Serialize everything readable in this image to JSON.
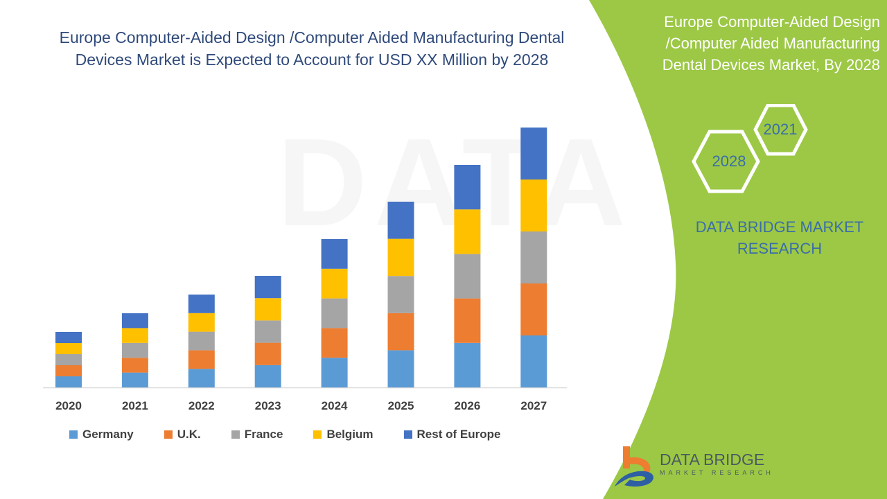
{
  "header": {
    "title": "Europe Computer-Aided Design /Computer Aided Manufacturing Dental Devices Market is Expected to Account for USD XX Million by 2028"
  },
  "side_panel": {
    "title": "Europe Computer-Aided Design /Computer Aided Manufacturing Dental Devices Market, By 2028",
    "hex_years": [
      "2021",
      "2028"
    ],
    "brand": "DATA BRIDGE MARKET RESEARCH",
    "logo_text": "DATA BRIDGE",
    "logo_sub": "MARKET RESEARCH",
    "accent": "#9cc846"
  },
  "chart_data": {
    "type": "bar",
    "stacked": true,
    "title": "",
    "xlabel": "",
    "ylabel": "",
    "categories": [
      "2020",
      "2021",
      "2022",
      "2023",
      "2024",
      "2025",
      "2026",
      "2027"
    ],
    "series": [
      {
        "name": "Germany",
        "color": "#5b9bd5",
        "values": [
          16,
          21.4,
          26.8,
          32.2,
          42.8,
          53.6,
          64.2,
          75
        ]
      },
      {
        "name": "U.K.",
        "color": "#ed7d31",
        "values": [
          16,
          21.4,
          26.8,
          32.2,
          42.8,
          53.6,
          64.2,
          75
        ]
      },
      {
        "name": "France",
        "color": "#a5a5a5",
        "values": [
          16,
          21.4,
          26.8,
          32.2,
          42.8,
          53.6,
          64.2,
          75
        ]
      },
      {
        "name": "Belgium",
        "color": "#ffc000",
        "values": [
          16,
          21.4,
          26.8,
          32.2,
          42.8,
          53.6,
          64.2,
          75
        ]
      },
      {
        "name": "Rest of Europe",
        "color": "#4472c4",
        "values": [
          16,
          21.4,
          26.8,
          32.2,
          42.8,
          53.6,
          64.2,
          75
        ]
      }
    ],
    "y_axis_shown": false,
    "grid": false,
    "legend_position": "bottom"
  }
}
